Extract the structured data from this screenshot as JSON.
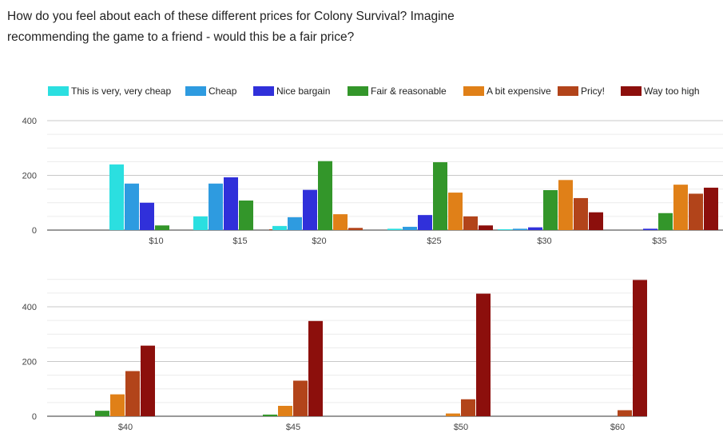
{
  "question": "How do you feel about each of these different prices for Colony Survival? Imagine recommending the game to a friend - would this be a fair price?",
  "chart_data": [
    {
      "type": "bar",
      "categories": [
        "$10",
        "$15",
        "$20",
        "$25",
        "$30",
        "$35"
      ],
      "ylim": [
        0,
        400
      ],
      "yticks": [
        0,
        200,
        400
      ],
      "series": [
        {
          "name": "This is very, very cheap",
          "color": "#2bdfe0",
          "values": [
            240,
            50,
            15,
            5,
            3,
            0
          ]
        },
        {
          "name": "Cheap",
          "color": "#2e9be0",
          "values": [
            170,
            170,
            47,
            12,
            5,
            0
          ]
        },
        {
          "name": "Nice bargain",
          "color": "#3030da",
          "values": [
            100,
            193,
            147,
            55,
            10,
            5
          ]
        },
        {
          "name": "Fair & reasonable",
          "color": "#33962a",
          "values": [
            17,
            108,
            252,
            248,
            146,
            62
          ]
        },
        {
          "name": "A bit expensive",
          "color": "#e08018",
          "values": [
            0,
            0,
            58,
            137,
            183,
            166
          ]
        },
        {
          "name": "Pricy!",
          "color": "#b2441a",
          "values": [
            0,
            3,
            8,
            50,
            117,
            133
          ]
        },
        {
          "name": "Way too high",
          "color": "#8c0f0c",
          "values": [
            0,
            0,
            0,
            17,
            65,
            155
          ]
        }
      ]
    },
    {
      "type": "bar",
      "categories": [
        "$40",
        "$45",
        "$50",
        "$60"
      ],
      "ylim": [
        0,
        500
      ],
      "yticks": [
        0,
        200,
        400
      ],
      "series": [
        {
          "name": "Fair & reasonable",
          "color": "#33962a",
          "values": [
            20,
            6,
            0,
            0
          ]
        },
        {
          "name": "A bit expensive",
          "color": "#e08018",
          "values": [
            80,
            38,
            10,
            0
          ]
        },
        {
          "name": "Pricy!",
          "color": "#b2441a",
          "values": [
            165,
            130,
            62,
            22
          ]
        },
        {
          "name": "Way too high",
          "color": "#8c0f0c",
          "values": [
            258,
            348,
            448,
            498
          ]
        }
      ]
    }
  ]
}
